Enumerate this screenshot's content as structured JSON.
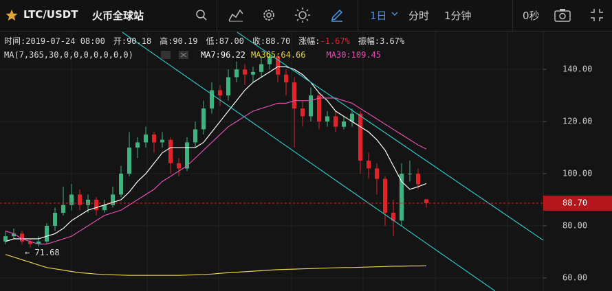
{
  "header": {
    "symbol": "LTC/USDT",
    "exchange": "火币全球站",
    "interval": "1日",
    "tabs": [
      "分时",
      "1分钟"
    ],
    "countdown": "0秒"
  },
  "info": [
    {
      "label": "时间:",
      "value": "2019-07-24 08:00"
    },
    {
      "label": "开:",
      "value": "90.18"
    },
    {
      "label": "高:",
      "value": "90.19"
    },
    {
      "label": "低:",
      "value": "87.00"
    },
    {
      "label": "收:",
      "value": "88.70"
    },
    {
      "label": "涨幅:",
      "value": "-1.67%"
    },
    {
      "label": "振幅:",
      "value": "3.67%"
    }
  ],
  "ma_settings": "MA(7,365,30,0,0,0,0,0,0,0)",
  "chart_data": {
    "type": "candlestick",
    "up_color": "#3fb37f",
    "down_color": "#e0242a",
    "candles": [
      [
        74,
        78,
        73,
        76
      ],
      [
        76,
        79,
        75,
        77
      ],
      [
        77,
        78,
        73,
        74
      ],
      [
        74,
        75,
        71.68,
        73
      ],
      [
        73,
        76,
        72,
        74
      ],
      [
        74,
        81,
        73,
        80
      ],
      [
        80,
        87,
        78,
        85
      ],
      [
        85,
        95,
        84,
        88
      ],
      [
        88,
        96,
        86,
        92
      ],
      [
        92,
        94,
        86,
        88
      ],
      [
        88,
        92,
        85,
        90
      ],
      [
        90,
        91,
        84,
        86
      ],
      [
        86,
        90,
        85,
        88
      ],
      [
        88,
        95,
        87,
        92
      ],
      [
        92,
        103,
        91,
        100
      ],
      [
        100,
        116,
        99,
        110
      ],
      [
        110,
        114,
        106,
        112
      ],
      [
        112,
        118,
        110,
        115
      ],
      [
        115,
        116,
        108,
        112
      ],
      [
        112,
        116,
        110,
        113
      ],
      [
        113,
        114,
        100,
        104
      ],
      [
        104,
        106,
        99,
        102
      ],
      [
        102,
        114,
        101,
        112
      ],
      [
        112,
        120,
        110,
        117
      ],
      [
        117,
        128,
        115,
        125
      ],
      [
        125,
        135,
        123,
        132
      ],
      [
        132,
        134,
        126,
        130
      ],
      [
        130,
        140,
        128,
        137
      ],
      [
        137,
        143,
        135,
        140
      ],
      [
        140,
        142,
        134,
        138
      ],
      [
        138,
        141,
        135,
        139
      ],
      [
        139,
        145,
        137,
        142
      ],
      [
        142,
        147,
        140,
        145
      ],
      [
        145,
        146,
        135,
        138
      ],
      [
        138,
        140,
        130,
        135
      ],
      [
        135,
        137,
        110,
        125
      ],
      [
        125,
        128,
        118,
        122
      ],
      [
        122,
        133,
        120,
        130
      ],
      [
        130,
        131,
        117,
        120
      ],
      [
        120,
        124,
        118,
        122
      ],
      [
        122,
        124,
        116,
        118
      ],
      [
        118,
        122,
        117,
        120
      ],
      [
        120,
        125,
        118,
        123
      ],
      [
        123,
        124,
        100,
        105
      ],
      [
        105,
        108,
        98,
        102
      ],
      [
        102,
        104,
        92,
        98
      ],
      [
        98,
        99,
        80,
        85
      ],
      [
        85,
        90,
        76,
        82
      ],
      [
        82,
        104,
        80,
        100
      ],
      [
        100,
        105,
        97,
        100
      ],
      [
        100,
        102,
        94,
        96
      ],
      [
        90.18,
        90.19,
        87,
        88.7
      ]
    ],
    "series": [
      {
        "name": "MA7:96.22",
        "color": "#ffffff",
        "values": [
          74,
          75,
          75,
          75,
          75,
          76,
          77,
          79,
          82,
          84,
          86,
          87,
          88,
          89,
          90,
          93,
          97,
          100,
          104,
          108,
          110,
          110,
          110,
          110,
          112,
          116,
          120,
          124,
          128,
          132,
          135,
          137,
          139,
          141,
          141,
          140,
          138,
          135,
          131,
          128,
          124,
          122,
          120,
          118,
          116,
          113,
          109,
          103,
          97,
          94,
          95,
          96.22
        ]
      },
      {
        "name": "MA365:64.66",
        "color": "#e8d44d",
        "values": [
          69,
          68,
          67,
          66,
          65,
          64,
          63.5,
          63,
          62.5,
          62,
          61.8,
          61.5,
          61.3,
          61.2,
          61.1,
          61,
          61,
          61,
          61,
          61,
          61,
          61,
          61.1,
          61.2,
          61.3,
          61.5,
          61.8,
          62,
          62.2,
          62.4,
          62.6,
          62.8,
          63,
          63.2,
          63.3,
          63.4,
          63.5,
          63.6,
          63.7,
          63.8,
          63.9,
          64,
          64,
          64.1,
          64.2,
          64.3,
          64.4,
          64.5,
          64.5,
          64.6,
          64.6,
          64.66
        ]
      },
      {
        "name": "MA30:109.45",
        "color": "#e04fb0",
        "values": [
          78,
          77,
          75,
          74,
          73,
          73,
          74,
          75,
          76,
          78,
          80,
          82,
          84,
          85,
          86,
          88,
          90,
          92,
          94,
          97,
          99,
          101,
          103,
          106,
          109,
          112,
          115,
          118,
          120,
          122,
          124,
          125,
          126,
          127,
          127,
          128,
          128,
          128,
          129,
          129,
          129,
          128,
          127,
          125,
          123,
          121,
          119,
          117,
          115,
          113,
          111,
          109.45
        ]
      }
    ],
    "ylim": [
      55,
      154.5
    ],
    "yticks": [
      {
        "value": 60,
        "label": "60.00"
      },
      {
        "value": 80,
        "label": "80.00"
      },
      {
        "value": 100,
        "label": "100.00"
      },
      {
        "value": 120,
        "label": "120.00"
      },
      {
        "value": 140,
        "label": "140.00"
      }
    ],
    "grid": true,
    "last_price_label": "88.70",
    "low_label": "← 71.68"
  }
}
